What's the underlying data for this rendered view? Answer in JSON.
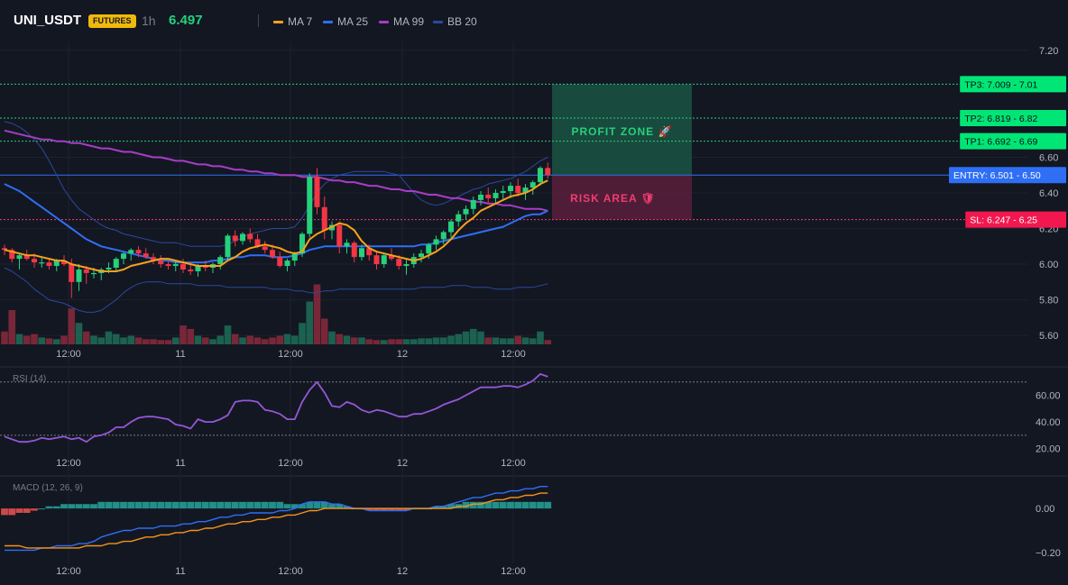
{
  "header": {
    "symbol": "UNI_USDT",
    "badge": "FUTURES",
    "timeframe": "1h",
    "price": "6.497",
    "legend": [
      {
        "label": "MA 7",
        "color": "#f7a21b"
      },
      {
        "label": "MA 25",
        "color": "#2f6ff5"
      },
      {
        "label": "MA 99",
        "color": "#a93cc7"
      },
      {
        "label": "BB 20",
        "color": "#2a4a9e"
      }
    ]
  },
  "chart_data": {
    "type": "candlestick",
    "price_axis": {
      "ylim": [
        5.55,
        7.25
      ],
      "ticks": [
        "7.20",
        "6.60",
        "6.40",
        "6.20",
        "6.00",
        "5.80",
        "5.60"
      ]
    },
    "time_axis": {
      "labels": [
        "12:00",
        "11",
        "12:00",
        "12",
        "12:00"
      ],
      "bars_between_labels": 24
    },
    "candles": [
      [
        6.09,
        6.11,
        6.05,
        6.08
      ],
      [
        6.08,
        6.09,
        6.01,
        6.03
      ],
      [
        6.03,
        6.06,
        5.97,
        6.05
      ],
      [
        6.05,
        6.08,
        6.02,
        6.03
      ],
      [
        6.03,
        6.06,
        5.98,
        6.01
      ],
      [
        6.01,
        6.04,
        5.98,
        6.01
      ],
      [
        6.01,
        6.03,
        5.97,
        5.99
      ],
      [
        5.99,
        6.03,
        5.96,
        6.02
      ],
      [
        6.02,
        6.05,
        5.99,
        6.0
      ],
      [
        6.0,
        6.03,
        5.81,
        5.9
      ],
      [
        5.9,
        6.0,
        5.85,
        5.97
      ],
      [
        5.97,
        5.99,
        5.89,
        5.95
      ],
      [
        5.95,
        5.98,
        5.92,
        5.95
      ],
      [
        5.95,
        5.98,
        5.91,
        5.97
      ],
      [
        5.97,
        6.01,
        5.95,
        5.98
      ],
      [
        5.98,
        6.04,
        5.96,
        6.03
      ],
      [
        6.03,
        6.07,
        6.0,
        6.06
      ],
      [
        6.06,
        6.09,
        6.02,
        6.08
      ],
      [
        6.08,
        6.1,
        6.04,
        6.06
      ],
      [
        6.06,
        6.09,
        6.03,
        6.04
      ],
      [
        6.04,
        6.06,
        6.0,
        6.02
      ],
      [
        6.02,
        6.05,
        5.98,
        6.0
      ],
      [
        6.0,
        6.03,
        5.97,
        5.99
      ],
      [
        5.99,
        6.02,
        5.96,
        6.0
      ],
      [
        6.0,
        6.03,
        5.95,
        5.97
      ],
      [
        5.97,
        6.01,
        5.94,
        5.96
      ],
      [
        5.96,
        6.0,
        5.93,
        5.99
      ],
      [
        5.99,
        6.02,
        5.96,
        5.98
      ],
      [
        5.98,
        6.01,
        5.95,
        6.0
      ],
      [
        6.0,
        6.05,
        5.97,
        6.04
      ],
      [
        6.04,
        6.17,
        6.02,
        6.16
      ],
      [
        6.16,
        6.19,
        6.1,
        6.13
      ],
      [
        6.13,
        6.18,
        6.11,
        6.17
      ],
      [
        6.17,
        6.2,
        6.12,
        6.14
      ],
      [
        6.14,
        6.17,
        6.09,
        6.1
      ],
      [
        6.1,
        6.13,
        6.06,
        6.08
      ],
      [
        6.08,
        6.11,
        6.03,
        6.04
      ],
      [
        6.04,
        6.07,
        5.98,
        5.99
      ],
      [
        5.99,
        6.03,
        5.96,
        6.02
      ],
      [
        6.02,
        6.07,
        5.99,
        6.06
      ],
      [
        6.06,
        6.18,
        6.04,
        6.17
      ],
      [
        6.17,
        6.51,
        6.15,
        6.49
      ],
      [
        6.49,
        6.54,
        6.28,
        6.32
      ],
      [
        6.32,
        6.38,
        6.14,
        6.19
      ],
      [
        6.19,
        6.24,
        6.14,
        6.22
      ],
      [
        6.22,
        6.24,
        6.06,
        6.1
      ],
      [
        6.1,
        6.14,
        6.06,
        6.12
      ],
      [
        6.12,
        6.13,
        6.01,
        6.04
      ],
      [
        6.04,
        6.11,
        6.02,
        6.09
      ],
      [
        6.09,
        6.11,
        6.02,
        6.05
      ],
      [
        6.05,
        6.07,
        5.97,
        6.0
      ],
      [
        6.0,
        6.06,
        5.98,
        6.05
      ],
      [
        6.05,
        6.09,
        6.02,
        6.03
      ],
      [
        6.03,
        6.05,
        5.97,
        5.99
      ],
      [
        5.99,
        6.03,
        5.94,
        6.0
      ],
      [
        6.0,
        6.06,
        5.98,
        6.04
      ],
      [
        6.04,
        6.08,
        6.01,
        6.06
      ],
      [
        6.06,
        6.12,
        6.03,
        6.11
      ],
      [
        6.11,
        6.16,
        6.08,
        6.14
      ],
      [
        6.14,
        6.19,
        6.11,
        6.18
      ],
      [
        6.18,
        6.25,
        6.15,
        6.24
      ],
      [
        6.24,
        6.3,
        6.21,
        6.28
      ],
      [
        6.28,
        6.33,
        6.25,
        6.31
      ],
      [
        6.31,
        6.38,
        6.28,
        6.36
      ],
      [
        6.36,
        6.41,
        6.33,
        6.39
      ],
      [
        6.39,
        6.43,
        6.34,
        6.37
      ],
      [
        6.37,
        6.42,
        6.34,
        6.4
      ],
      [
        6.4,
        6.44,
        6.36,
        6.41
      ],
      [
        6.41,
        6.46,
        6.37,
        6.44
      ],
      [
        6.44,
        6.48,
        6.38,
        6.4
      ],
      [
        6.4,
        6.45,
        6.36,
        6.43
      ],
      [
        6.43,
        6.47,
        6.39,
        6.46
      ],
      [
        6.46,
        6.55,
        6.44,
        6.54
      ],
      [
        6.54,
        6.57,
        6.48,
        6.5
      ]
    ],
    "ma7": [
      6.08,
      6.07,
      6.06,
      6.05,
      6.05,
      6.04,
      6.03,
      6.02,
      6.02,
      6.0,
      5.99,
      5.98,
      5.97,
      5.96,
      5.96,
      5.96,
      5.97,
      5.99,
      6.0,
      6.01,
      6.02,
      6.03,
      6.03,
      6.02,
      6.01,
      6.0,
      5.99,
      5.99,
      5.99,
      5.99,
      6.02,
      6.04,
      6.07,
      6.09,
      6.1,
      6.11,
      6.1,
      6.09,
      6.07,
      6.06,
      6.07,
      6.14,
      6.17,
      6.19,
      6.21,
      6.23,
      6.22,
      6.19,
      6.13,
      6.09,
      6.07,
      6.06,
      6.05,
      6.04,
      6.03,
      6.02,
      6.03,
      6.05,
      6.07,
      6.1,
      6.14,
      6.19,
      6.23,
      6.26,
      6.3,
      6.32,
      6.34,
      6.36,
      6.38,
      6.39,
      6.4,
      6.42,
      6.45,
      6.47
    ],
    "ma25": [
      6.45,
      6.43,
      6.41,
      6.38,
      6.35,
      6.32,
      6.29,
      6.26,
      6.23,
      6.2,
      6.17,
      6.14,
      6.12,
      6.1,
      6.09,
      6.08,
      6.07,
      6.06,
      6.05,
      6.04,
      6.03,
      6.02,
      6.02,
      6.01,
      6.01,
      6.01,
      6.01,
      6.01,
      6.02,
      6.02,
      6.03,
      6.04,
      6.04,
      6.05,
      6.05,
      6.05,
      6.04,
      6.04,
      6.04,
      6.05,
      6.06,
      6.08,
      6.09,
      6.1,
      6.1,
      6.1,
      6.1,
      6.1,
      6.1,
      6.1,
      6.1,
      6.1,
      6.1,
      6.1,
      6.1,
      6.1,
      6.11,
      6.11,
      6.12,
      6.13,
      6.14,
      6.15,
      6.16,
      6.17,
      6.18,
      6.19,
      6.2,
      6.21,
      6.23,
      6.25,
      6.27,
      6.28,
      6.28,
      6.3
    ],
    "ma99": [
      6.75,
      6.74,
      6.73,
      6.72,
      6.71,
      6.7,
      6.7,
      6.69,
      6.69,
      6.68,
      6.68,
      6.67,
      6.66,
      6.65,
      6.65,
      6.64,
      6.63,
      6.63,
      6.62,
      6.61,
      6.6,
      6.6,
      6.59,
      6.58,
      6.58,
      6.57,
      6.56,
      6.56,
      6.55,
      6.55,
      6.54,
      6.53,
      6.53,
      6.52,
      6.52,
      6.51,
      6.51,
      6.5,
      6.5,
      6.5,
      6.49,
      6.49,
      6.49,
      6.48,
      6.47,
      6.47,
      6.46,
      6.46,
      6.45,
      6.44,
      6.44,
      6.43,
      6.42,
      6.42,
      6.41,
      6.41,
      6.4,
      6.39,
      6.39,
      6.38,
      6.37,
      6.37,
      6.36,
      6.35,
      6.35,
      6.34,
      6.34,
      6.33,
      6.33,
      6.32,
      6.31,
      6.31,
      6.31,
      6.3
    ],
    "bb_upper": [
      6.8,
      6.79,
      6.77,
      6.74,
      6.7,
      6.65,
      6.58,
      6.5,
      6.42,
      6.36,
      6.31,
      6.28,
      6.25,
      6.22,
      6.2,
      6.19,
      6.17,
      6.16,
      6.15,
      6.14,
      6.13,
      6.12,
      6.12,
      6.12,
      6.11,
      6.1,
      6.1,
      6.1,
      6.1,
      6.1,
      6.11,
      6.13,
      6.15,
      6.17,
      6.18,
      6.19,
      6.2,
      6.2,
      6.2,
      6.21,
      6.26,
      6.33,
      6.4,
      6.45,
      6.48,
      6.5,
      6.51,
      6.52,
      6.52,
      6.52,
      6.52,
      6.52,
      6.51,
      6.5,
      6.45,
      6.4,
      6.36,
      6.34,
      6.33,
      6.34,
      6.36,
      6.38,
      6.4,
      6.42,
      6.43,
      6.45,
      6.46,
      6.47,
      6.48,
      6.5,
      6.52,
      6.55,
      6.58,
      6.6
    ],
    "bb_lower": [
      5.98,
      5.96,
      5.93,
      5.9,
      5.86,
      5.83,
      5.8,
      5.79,
      5.78,
      5.76,
      5.74,
      5.73,
      5.73,
      5.74,
      5.77,
      5.8,
      5.84,
      5.87,
      5.89,
      5.9,
      5.9,
      5.9,
      5.89,
      5.89,
      5.89,
      5.89,
      5.88,
      5.88,
      5.88,
      5.88,
      5.87,
      5.87,
      5.87,
      5.87,
      5.87,
      5.87,
      5.86,
      5.86,
      5.86,
      5.85,
      5.85,
      5.84,
      5.84,
      5.85,
      5.85,
      5.86,
      5.86,
      5.86,
      5.86,
      5.86,
      5.86,
      5.86,
      5.86,
      5.86,
      5.86,
      5.86,
      5.87,
      5.87,
      5.87,
      5.87,
      5.88,
      5.88,
      5.88,
      5.87,
      5.87,
      5.87,
      5.86,
      5.86,
      5.86,
      5.87,
      5.87,
      5.87,
      5.88,
      5.89
    ],
    "volume": [
      0.15,
      0.4,
      0.12,
      0.1,
      0.12,
      0.08,
      0.07,
      0.06,
      0.1,
      0.42,
      0.25,
      0.15,
      0.1,
      0.08,
      0.15,
      0.12,
      0.08,
      0.1,
      0.08,
      0.06,
      0.06,
      0.05,
      0.05,
      0.08,
      0.22,
      0.18,
      0.1,
      0.08,
      0.06,
      0.1,
      0.22,
      0.12,
      0.08,
      0.1,
      0.08,
      0.06,
      0.08,
      0.1,
      0.12,
      0.1,
      0.25,
      0.5,
      0.7,
      0.3,
      0.15,
      0.12,
      0.1,
      0.08,
      0.08,
      0.06,
      0.05,
      0.05,
      0.06,
      0.06,
      0.06,
      0.06,
      0.07,
      0.07,
      0.08,
      0.08,
      0.1,
      0.12,
      0.15,
      0.18,
      0.15,
      0.08,
      0.08,
      0.07,
      0.07,
      0.1,
      0.08,
      0.07,
      0.15,
      0.05
    ],
    "levels": [
      {
        "label": "TP3: 7.009",
        "value": 7.01,
        "axis_label": "7.01",
        "kind": "tp"
      },
      {
        "label": "TP2: 6.819",
        "value": 6.82,
        "axis_label": "6.82",
        "kind": "tp"
      },
      {
        "label": "TP1: 6.692",
        "value": 6.69,
        "axis_label": "6.69",
        "kind": "tp"
      },
      {
        "label": "ENTRY: 6.501",
        "value": 6.5,
        "axis_label": "6.50",
        "kind": "entry"
      },
      {
        "label": "SL: 6.247",
        "value": 6.25,
        "axis_label": "6.25",
        "kind": "sl"
      }
    ],
    "zones": {
      "profit_label": "PROFIT ZONE 🚀",
      "risk_label": "RISK AREA 🛡"
    },
    "rsi": {
      "label": "RSI (14)",
      "ylim": [
        15,
        80
      ],
      "ticks": [
        "60.00",
        "40.00",
        "20.00"
      ],
      "levels": [
        70,
        30
      ],
      "values": [
        29,
        27,
        25,
        25,
        26,
        28,
        27,
        28,
        29,
        27,
        28,
        25,
        29,
        30,
        32,
        36,
        36,
        40,
        43,
        44,
        44,
        43,
        42,
        38,
        37,
        35,
        42,
        40,
        40,
        42,
        45,
        55,
        56,
        56,
        55,
        49,
        48,
        46,
        42,
        42,
        55,
        64,
        70,
        62,
        52,
        51,
        55,
        53,
        49,
        47,
        49,
        48,
        46,
        44,
        44,
        46,
        46,
        48,
        50,
        53,
        55,
        57,
        60,
        63,
        66,
        66,
        66,
        67,
        67,
        66,
        68,
        71,
        76,
        74
      ]
    },
    "macd": {
      "label": "MACD (12, 26, 9)",
      "ylim": [
        -0.25,
        0.14
      ],
      "ticks": [
        "0.00",
        "−0.20"
      ],
      "macd_line": [
        -0.19,
        -0.19,
        -0.19,
        -0.19,
        -0.19,
        -0.18,
        -0.18,
        -0.17,
        -0.17,
        -0.17,
        -0.16,
        -0.16,
        -0.15,
        -0.13,
        -0.12,
        -0.11,
        -0.1,
        -0.1,
        -0.09,
        -0.09,
        -0.09,
        -0.08,
        -0.08,
        -0.08,
        -0.07,
        -0.07,
        -0.06,
        -0.06,
        -0.05,
        -0.04,
        -0.04,
        -0.03,
        -0.03,
        -0.02,
        -0.02,
        -0.02,
        -0.02,
        -0.01,
        -0.01,
        -0.0,
        0.02,
        0.03,
        0.03,
        0.03,
        0.02,
        0.02,
        0.01,
        0.0,
        -0.0,
        -0.01,
        -0.01,
        -0.01,
        -0.01,
        -0.01,
        -0.01,
        -0.0,
        -0.0,
        0.0,
        0.01,
        0.01,
        0.02,
        0.03,
        0.04,
        0.05,
        0.05,
        0.06,
        0.07,
        0.07,
        0.08,
        0.08,
        0.09,
        0.09,
        0.1,
        0.1
      ],
      "signal_line": [
        -0.17,
        -0.17,
        -0.17,
        -0.18,
        -0.18,
        -0.18,
        -0.18,
        -0.18,
        -0.18,
        -0.18,
        -0.18,
        -0.17,
        -0.17,
        -0.17,
        -0.16,
        -0.16,
        -0.15,
        -0.15,
        -0.14,
        -0.13,
        -0.13,
        -0.12,
        -0.12,
        -0.11,
        -0.11,
        -0.1,
        -0.1,
        -0.09,
        -0.09,
        -0.08,
        -0.07,
        -0.07,
        -0.06,
        -0.06,
        -0.05,
        -0.05,
        -0.04,
        -0.04,
        -0.03,
        -0.03,
        -0.02,
        -0.01,
        -0.01,
        0.0,
        0.0,
        0.0,
        0.0,
        0.0,
        0.0,
        0.0,
        -0.0,
        -0.0,
        -0.0,
        -0.0,
        -0.0,
        -0.0,
        -0.0,
        -0.0,
        -0.0,
        0.0,
        0.0,
        0.01,
        0.01,
        0.02,
        0.02,
        0.03,
        0.04,
        0.04,
        0.05,
        0.05,
        0.06,
        0.06,
        0.07,
        0.07
      ],
      "histogram": [
        -0.03,
        -0.03,
        -0.02,
        -0.02,
        -0.01,
        -0.0,
        0.01,
        0.01,
        0.02,
        0.02,
        0.02,
        0.02,
        0.02,
        0.03,
        0.03,
        0.03,
        0.03,
        0.03,
        0.03,
        0.03,
        0.03,
        0.03,
        0.03,
        0.03,
        0.03,
        0.03,
        0.03,
        0.03,
        0.03,
        0.03,
        0.03,
        0.03,
        0.03,
        0.03,
        0.03,
        0.03,
        0.03,
        0.03,
        0.02,
        0.02,
        0.02,
        0.03,
        0.03,
        0.03,
        0.02,
        0.02,
        0.01,
        0.0,
        -0.0,
        -0.01,
        -0.01,
        -0.01,
        -0.01,
        -0.01,
        -0.01,
        -0.0,
        -0.0,
        0.0,
        0.01,
        0.01,
        0.02,
        0.02,
        0.03,
        0.03,
        0.03,
        0.03,
        0.03,
        0.03,
        0.03,
        0.03,
        0.03,
        0.03,
        0.03,
        0.03
      ]
    }
  }
}
